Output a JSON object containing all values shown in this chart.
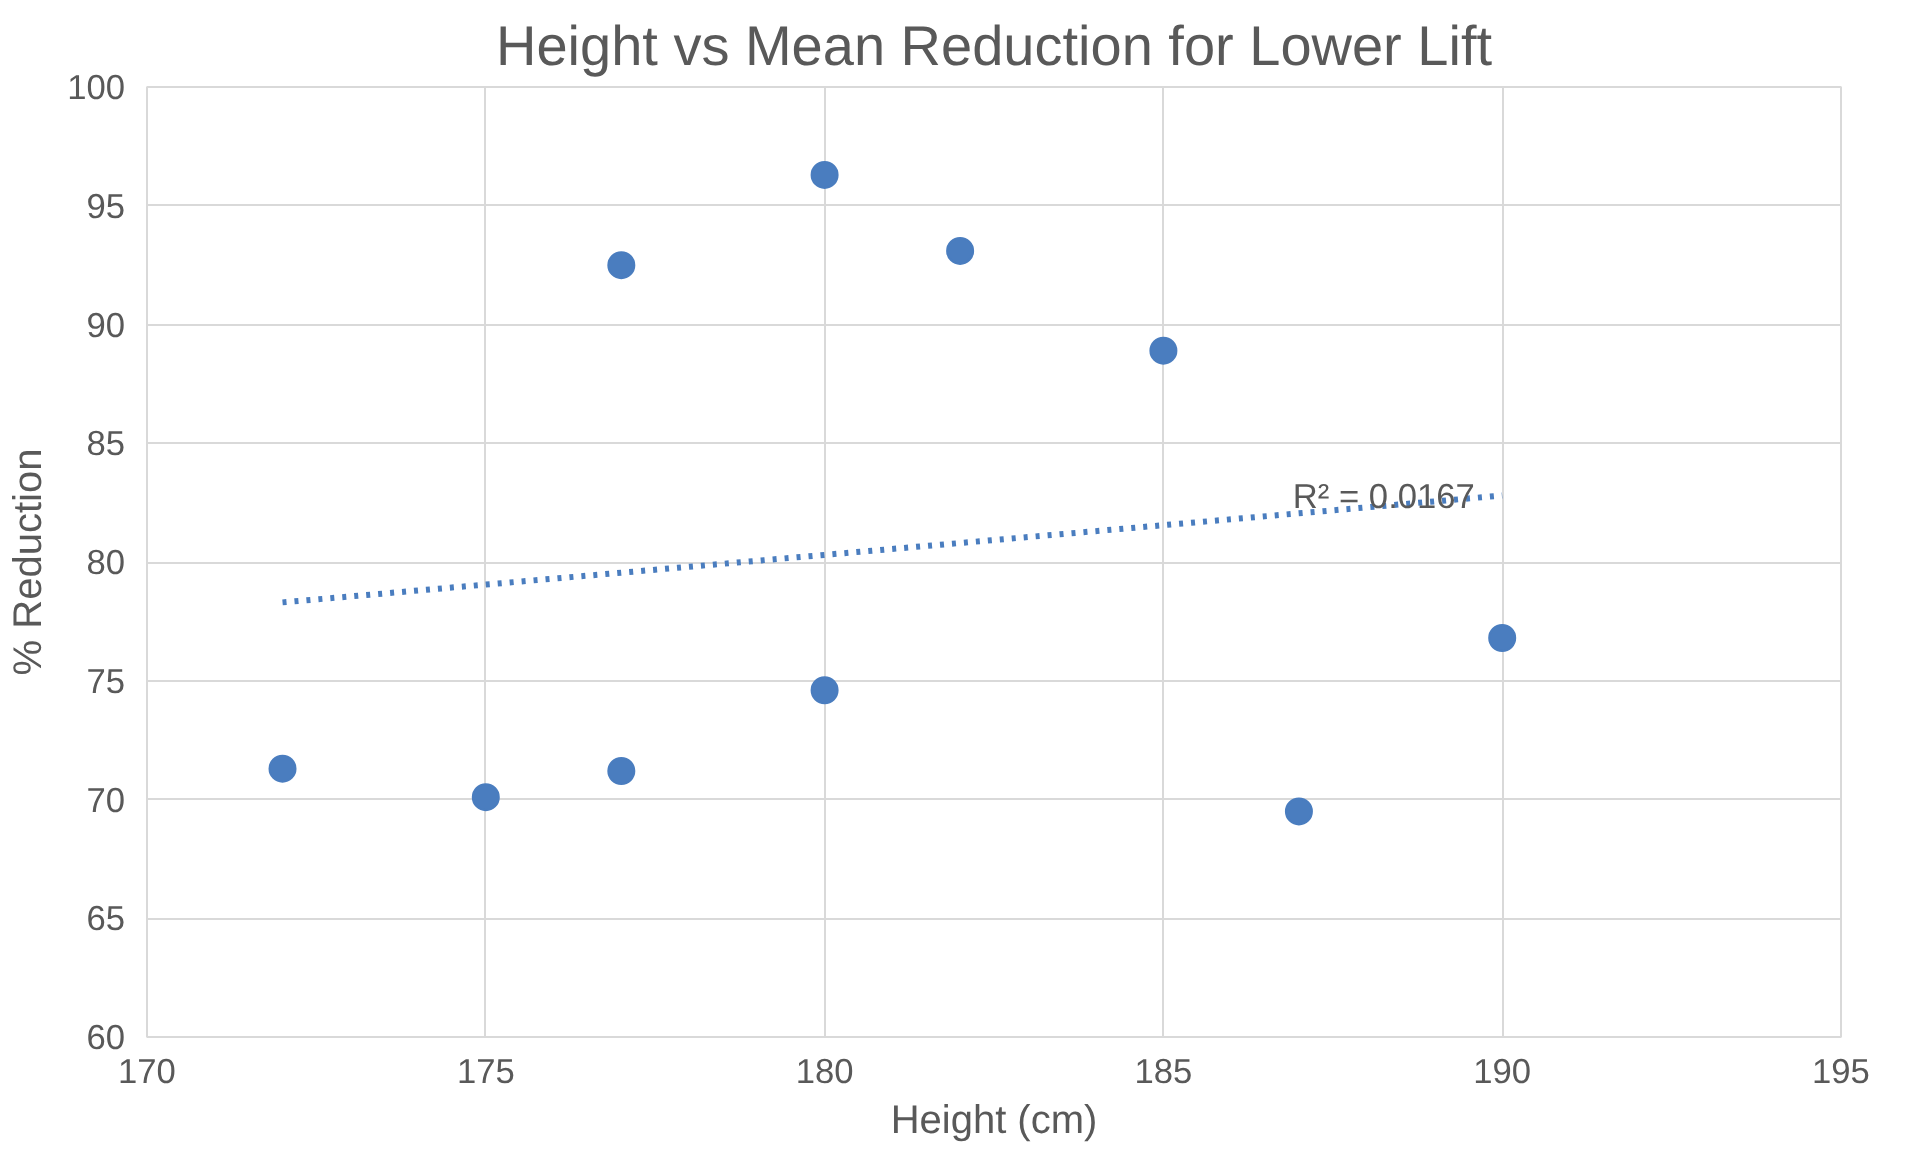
{
  "chart_data": {
    "type": "scatter",
    "title": "Height vs Mean Reduction for Lower Lift",
    "xlabel": "Height (cm)",
    "ylabel": "% Reduction",
    "series": [
      {
        "color": "#4a7dbf",
        "marker": "circle",
        "x": [
          172,
          175,
          177,
          177,
          180,
          180,
          182,
          185,
          187,
          190
        ],
        "values": [
          71.3,
          70.1,
          92.5,
          71.2,
          96.3,
          74.6,
          93.1,
          88.9,
          69.5,
          76.8
        ]
      },
      {
        "type": "line",
        "color": "#4a7dbf",
        "line_style": "dotted",
        "x": [
          172,
          190
        ],
        "values": [
          78.3,
          82.8
        ]
      }
    ],
    "annotations": [
      {
        "text": "R² = 0.0167",
        "x": 187.5,
        "y": 82.6
      }
    ],
    "xlim": [
      170,
      195
    ],
    "xticks": [
      170,
      175,
      180,
      185,
      190,
      195
    ],
    "ylim": [
      60,
      100
    ],
    "yticks": [
      60,
      65,
      70,
      75,
      80,
      85,
      90,
      95,
      100
    ],
    "grid": true
  }
}
